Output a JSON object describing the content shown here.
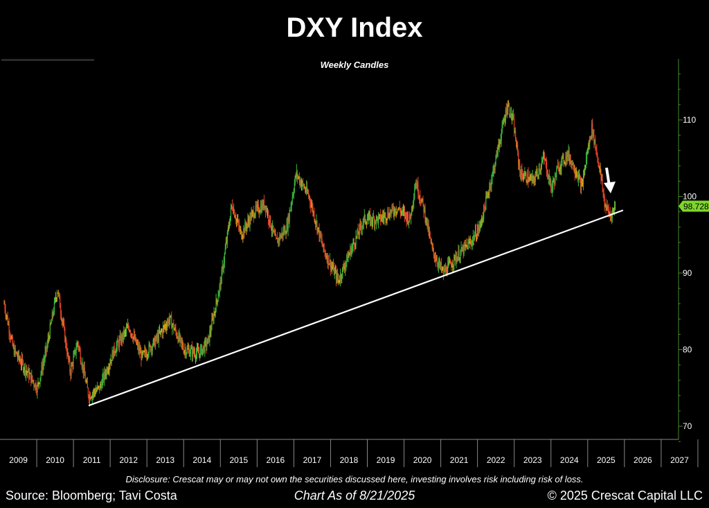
{
  "chart_data": {
    "type": "candlestick",
    "title": "DXY Index",
    "subtitle": "Weekly Candles",
    "x_ticks": [
      "2009",
      "2010",
      "2011",
      "2012",
      "2013",
      "2014",
      "2015",
      "2016",
      "2017",
      "2018",
      "2019",
      "2020",
      "2021",
      "2022",
      "2023",
      "2024",
      "2025",
      "2026",
      "2027"
    ],
    "y_ticks": [
      70,
      80,
      90,
      100,
      110
    ],
    "ylim": [
      68,
      117
    ],
    "last_value_label": "98.728",
    "last_value": 98.728,
    "series_anchor_points": [
      {
        "date": 2009.0,
        "value": 86
      },
      {
        "date": 2009.25,
        "value": 80
      },
      {
        "date": 2009.9,
        "value": 75
      },
      {
        "date": 2010.15,
        "value": 80
      },
      {
        "date": 2010.45,
        "value": 88
      },
      {
        "date": 2010.8,
        "value": 77
      },
      {
        "date": 2011.0,
        "value": 81
      },
      {
        "date": 2011.3,
        "value": 74
      },
      {
        "date": 2011.6,
        "value": 75
      },
      {
        "date": 2012.0,
        "value": 80
      },
      {
        "date": 2012.4,
        "value": 83
      },
      {
        "date": 2012.75,
        "value": 79
      },
      {
        "date": 2013.1,
        "value": 81
      },
      {
        "date": 2013.5,
        "value": 84
      },
      {
        "date": 2013.9,
        "value": 80
      },
      {
        "date": 2014.3,
        "value": 79.5
      },
      {
        "date": 2014.55,
        "value": 81
      },
      {
        "date": 2014.9,
        "value": 89
      },
      {
        "date": 2015.2,
        "value": 99
      },
      {
        "date": 2015.45,
        "value": 95
      },
      {
        "date": 2015.8,
        "value": 98
      },
      {
        "date": 2016.1,
        "value": 99
      },
      {
        "date": 2016.4,
        "value": 94
      },
      {
        "date": 2016.7,
        "value": 96
      },
      {
        "date": 2016.95,
        "value": 103
      },
      {
        "date": 2017.3,
        "value": 100
      },
      {
        "date": 2017.7,
        "value": 93
      },
      {
        "date": 2018.1,
        "value": 89
      },
      {
        "date": 2018.35,
        "value": 92
      },
      {
        "date": 2018.8,
        "value": 97
      },
      {
        "date": 2019.2,
        "value": 97
      },
      {
        "date": 2019.7,
        "value": 98.5
      },
      {
        "date": 2020.05,
        "value": 97
      },
      {
        "date": 2020.2,
        "value": 102
      },
      {
        "date": 2020.45,
        "value": 98
      },
      {
        "date": 2020.65,
        "value": 93
      },
      {
        "date": 2020.95,
        "value": 90
      },
      {
        "date": 2021.3,
        "value": 92
      },
      {
        "date": 2021.7,
        "value": 94
      },
      {
        "date": 2021.95,
        "value": 96
      },
      {
        "date": 2022.3,
        "value": 103
      },
      {
        "date": 2022.7,
        "value": 112
      },
      {
        "date": 2022.85,
        "value": 110
      },
      {
        "date": 2023.05,
        "value": 103
      },
      {
        "date": 2023.4,
        "value": 102
      },
      {
        "date": 2023.7,
        "value": 105
      },
      {
        "date": 2023.9,
        "value": 101
      },
      {
        "date": 2024.1,
        "value": 104
      },
      {
        "date": 2024.35,
        "value": 105.5
      },
      {
        "date": 2024.6,
        "value": 103
      },
      {
        "date": 2024.72,
        "value": 101
      },
      {
        "date": 2024.85,
        "value": 105
      },
      {
        "date": 2025.0,
        "value": 109
      },
      {
        "date": 2025.2,
        "value": 104
      },
      {
        "date": 2025.35,
        "value": 99
      },
      {
        "date": 2025.5,
        "value": 97.5
      },
      {
        "date": 2025.64,
        "value": 98.7
      }
    ],
    "trendline": {
      "start": {
        "date": 2011.3,
        "value": 72.7
      },
      "end": {
        "date": 2025.85,
        "value": 98.2
      }
    },
    "annotation": "down-arrow-icon",
    "colors": {
      "up": "#3cb83c",
      "down": "#e0452a",
      "mid": "#d9a21a",
      "trendline": "#ffffff",
      "last_value_bg": "#7dd62a",
      "axis": "#4a8a2a"
    }
  },
  "footer": {
    "disclosure": "Disclosure: Crescat may or may not own the securities discussed here, investing involves risk including risk of loss.",
    "source": "Source: Bloomberg; Tavi Costa",
    "as_of": "Chart As of 8/21/2025",
    "copyright": "© 2025 Crescat Capital LLC"
  }
}
